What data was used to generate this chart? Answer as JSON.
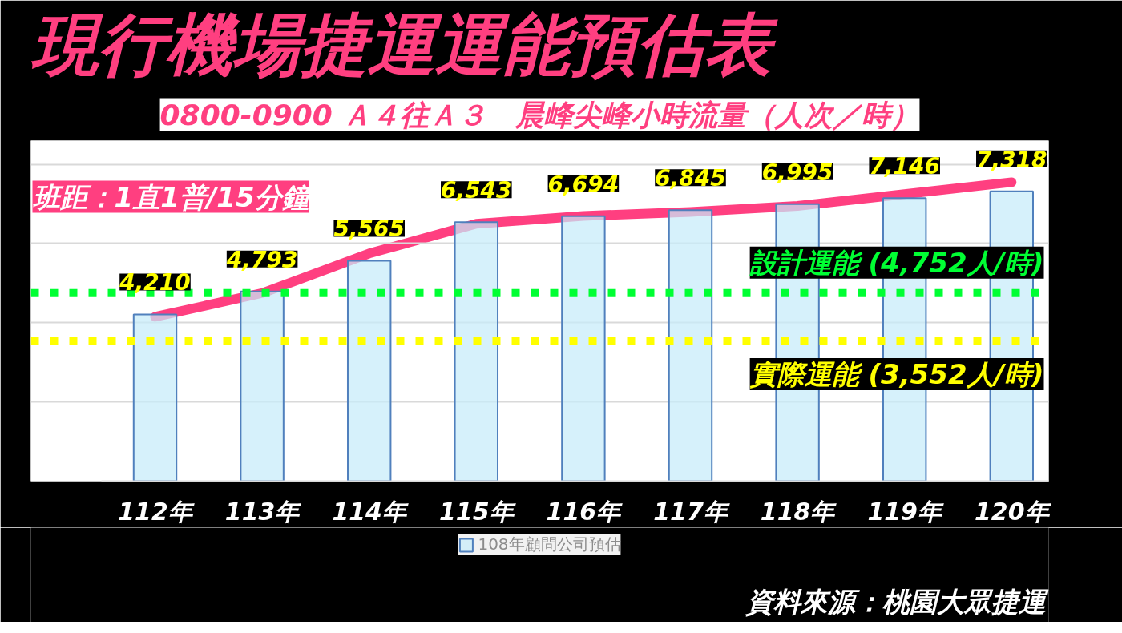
{
  "chart_data": {
    "type": "bar",
    "title": "現行機場捷運運能預估表",
    "subtitle": "0800-0900 Ａ４往Ａ３　晨峰尖峰小時流量（人次／時）",
    "categories": [
      "112年",
      "113年",
      "114年",
      "115年",
      "116年",
      "117年",
      "118年",
      "119年",
      "120年"
    ],
    "series": [
      {
        "name": "108年顧問公司預估",
        "color": "#c6ecfa",
        "values": [
          4210,
          4793,
          5565,
          6543,
          6694,
          6845,
          6995,
          7146,
          7318
        ],
        "value_labels": [
          "4,210",
          "4,793",
          "5,565",
          "6,543",
          "6,694",
          "6,845",
          "6,995",
          "7,146",
          "7,318"
        ]
      },
      {
        "type": "line",
        "color": "#ff3f80",
        "values": [
          4150,
          4750,
          5750,
          6500,
          6700,
          6800,
          6950,
          7250,
          7550
        ]
      }
    ],
    "ylim": [
      0,
      8600
    ],
    "yticks": [
      {
        "value": 0,
        "label": null
      },
      {
        "value": 2000,
        "label": null
      },
      {
        "value": 4000,
        "label": null
      },
      {
        "value": 6000,
        "label": null
      },
      {
        "value": 8000,
        "label": null
      }
    ],
    "tick_labels": "x",
    "grid": "y",
    "legend": "bottom",
    "ref_lines": [
      {
        "axis": "y",
        "value": 4752,
        "label": "設計運能 (4,752人/時)",
        "color": "#00ff33",
        "line_style": "dotted"
      },
      {
        "axis": "y",
        "value": 3552,
        "label": "實際運能 (3,552人/時)",
        "color": "#ffff00",
        "line_style": "dotted"
      }
    ],
    "annotations": [
      "班距：1直1普/15分鐘",
      "資料來源：桃園大眾捷運"
    ]
  }
}
